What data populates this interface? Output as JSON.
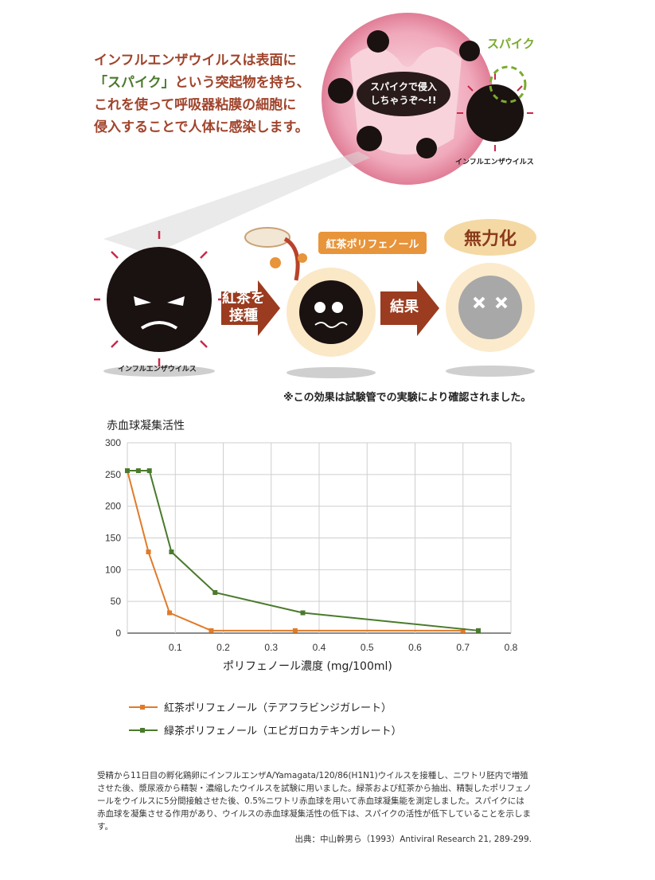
{
  "intro": {
    "line1": "インフルエンザウイルスは表面に",
    "line2_hl": "「スパイク」",
    "line2_rest": "という突起物を持ち、",
    "line3": "これを使って呼吸器粘膜の細胞に",
    "line4": "侵入することで人体に感染します。"
  },
  "illustration": {
    "spike_label": "スパイク",
    "bubble_line1": "スパイクで侵入",
    "bubble_line2": "しちゃうぞ～!!",
    "virus_caption_top": "インフルエンザウイルス",
    "virus_caption_left": "インフルエンザウイルス",
    "arrow1_line1": "紅茶を",
    "arrow1_line2": "接種",
    "polyphenol_label": "紅茶ポリフェノール",
    "arrow2": "結果",
    "result_badge": "無力化",
    "colors": {
      "virus": "#1a1111",
      "spike": "#c8284a",
      "arrow": "#9b3b1f",
      "leaf": "#e8943a",
      "inactive": "#a8a8a8"
    }
  },
  "note": "※この効果は試験管での実験により確認されました。",
  "chart_data": {
    "type": "line",
    "ylabel": "赤血球凝集活性",
    "xlabel": "ポリフェノール濃度 (mg/100ml)",
    "xlim": [
      0,
      0.8
    ],
    "ylim": [
      0,
      300
    ],
    "xticks": [
      "0.1",
      "0.2",
      "0.3",
      "0.4",
      "0.5",
      "0.6",
      "0.7",
      "0.8"
    ],
    "yticks": [
      "0",
      "50",
      "100",
      "150",
      "200",
      "250",
      "300"
    ],
    "grid": true,
    "legend_position": "bottom",
    "series": [
      {
        "name": "紅茶ポリフェノール（テアフラビンジガレート）",
        "color": "#e07b2a",
        "x": [
          0,
          0.044,
          0.088,
          0.175,
          0.35,
          0.7
        ],
        "y": [
          256,
          128,
          32,
          4,
          4,
          4
        ]
      },
      {
        "name": "緑茶ポリフェノール（エピガロカテキンガレート）",
        "color": "#4a7a2c",
        "x": [
          0,
          0.023,
          0.046,
          0.092,
          0.183,
          0.366,
          0.732
        ],
        "y": [
          256,
          256,
          256,
          128,
          64,
          32,
          4
        ]
      }
    ]
  },
  "footer": {
    "text": "受精から11日目の孵化鶏卵にインフルエンザA/Yamagata/120/86(H1N1)ウイルスを接種し、ニワトリ胚内で増殖させた後、漿尿液から精製・濃縮したウイルスを試験に用いました。緑茶および紅茶から抽出、精製したポリフェノールをウイルスに5分間接触させた後、0.5%ニワトリ赤血球を用いて赤血球凝集能を測定しました。スパイクには赤血球を凝集させる作用があり、ウイルスの赤血球凝集活性の低下は、スパイクの活性が低下していることを示します。",
    "source": "出典：中山幹男ら（1993）Antiviral Research 21, 289-299."
  }
}
